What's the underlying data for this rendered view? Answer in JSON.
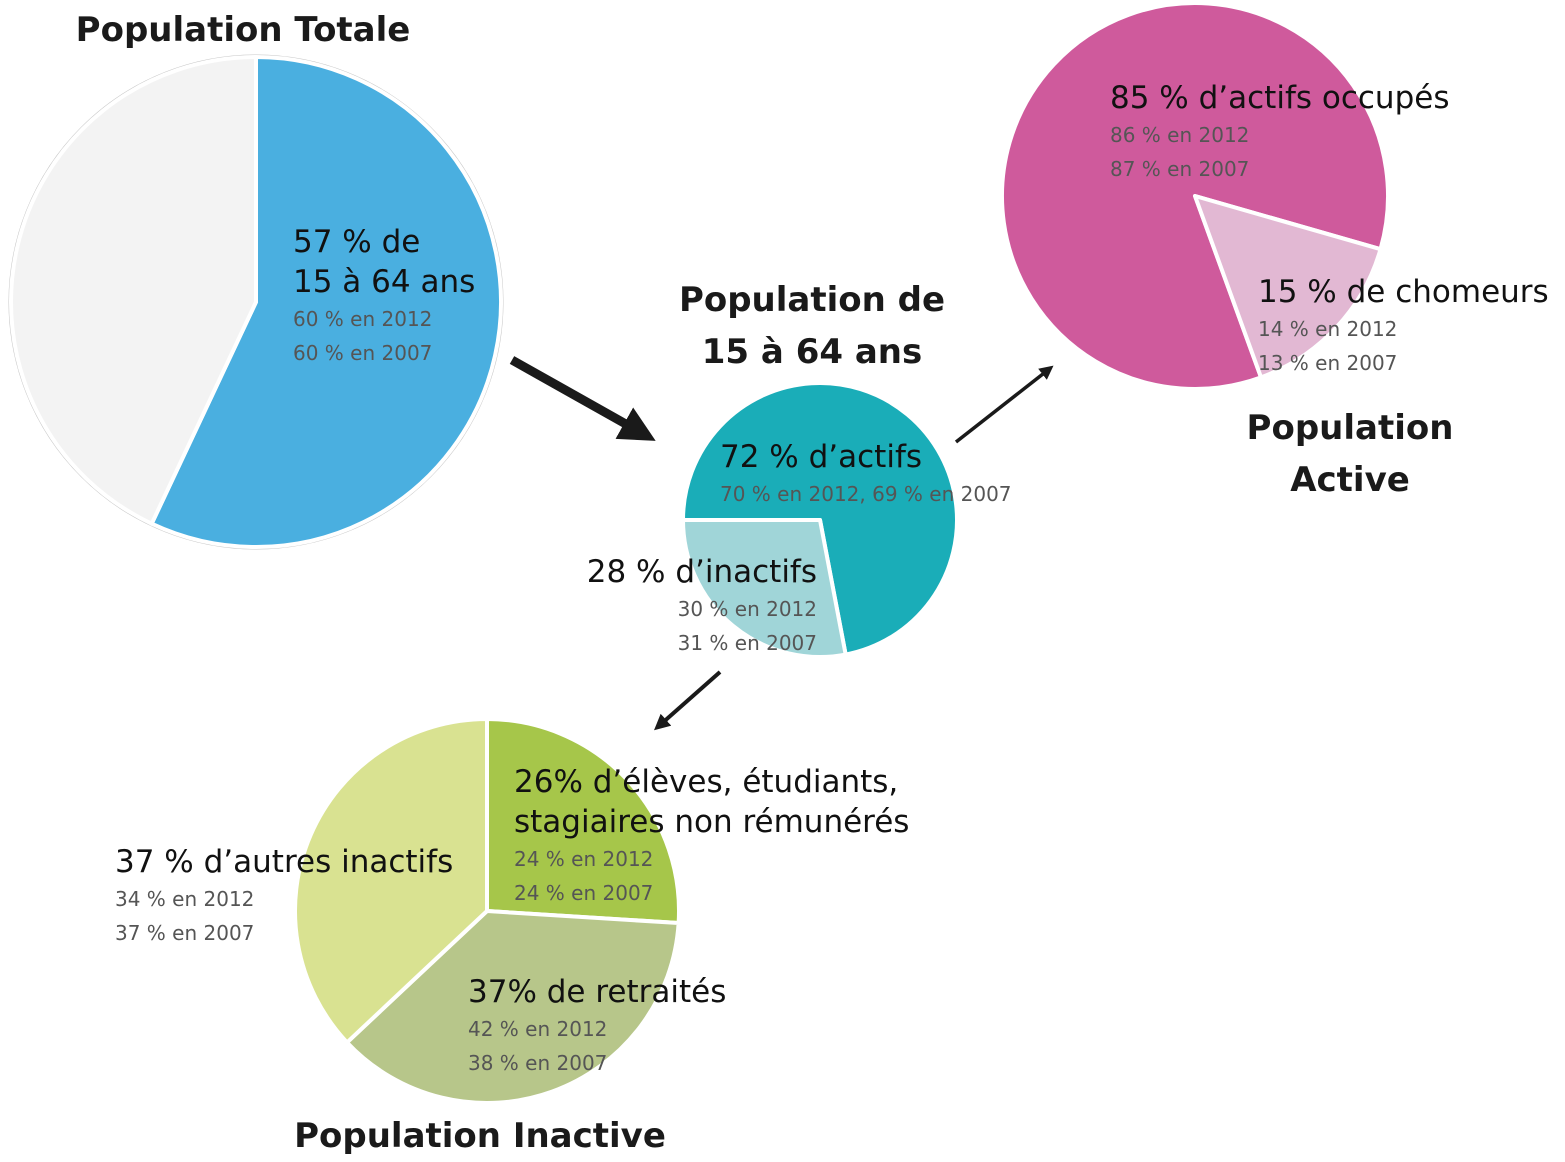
{
  "chart_data": [
    {
      "type": "pie",
      "title": "Population Totale",
      "categories": [
        "57 % de\n15 à 64 ans",
        null
      ],
      "values": [
        57,
        43
      ],
      "colors": [
        "#4aafe0",
        "#f3f3f3"
      ],
      "notes": [
        [
          "60 % en 2012",
          "60 % en 2007"
        ],
        null
      ]
    },
    {
      "type": "pie",
      "title": "Population de\n15 à 64 ans",
      "categories": [
        "72 % d’actifs",
        "28 % d’inactifs"
      ],
      "values": [
        72,
        28
      ],
      "colors": [
        "#1aadb8",
        "#a0d5d8"
      ],
      "notes": [
        [
          "70 % en 2012, 69 % en 2007"
        ],
        [
          "30 % en 2012",
          "31 % en 2007"
        ]
      ]
    },
    {
      "type": "pie",
      "title": "Population Active",
      "categories": [
        "85 % d’actifs occupés",
        "15 % de chomeurs"
      ],
      "values": [
        85,
        15
      ],
      "colors": [
        "#cf5a9c",
        "#e2b8d3"
      ],
      "notes": [
        [
          "86 % en 2012",
          "87 % en 2007"
        ],
        [
          "14 % en 2012",
          "13 % en 2007"
        ]
      ]
    },
    {
      "type": "pie",
      "title": "Population Inactive",
      "categories": [
        "26% d’élèves, étudiants,\nstagiaires non rémunérés",
        "37% de retraités",
        "37 % d’autres inactifs"
      ],
      "values": [
        26,
        37,
        37
      ],
      "colors": [
        "#a6c64a",
        "#b7c68a",
        "#d9e291"
      ],
      "notes": [
        [
          "24 % en 2012",
          "24 % en 2007"
        ],
        [
          "42 % en 2012",
          "38 % en 2007"
        ],
        [
          "34 % en 2012",
          "37 % en 2007"
        ]
      ]
    }
  ]
}
